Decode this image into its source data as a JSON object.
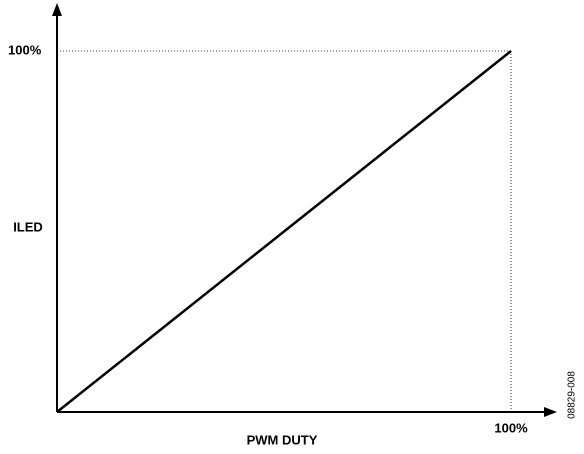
{
  "chart_data": {
    "type": "line",
    "x": [
      0,
      100
    ],
    "values": [
      0,
      100
    ],
    "color": "#000000",
    "xlabel": "PWM DUTY",
    "ylabel": "ILED",
    "xlim": [
      0,
      110
    ],
    "ylim": [
      0,
      113
    ],
    "xticks": [
      {
        "value": 100,
        "label": "100%"
      }
    ],
    "yticks": [
      {
        "value": 100,
        "label": "100%"
      }
    ],
    "grid": true,
    "annotation": "08829-008"
  }
}
